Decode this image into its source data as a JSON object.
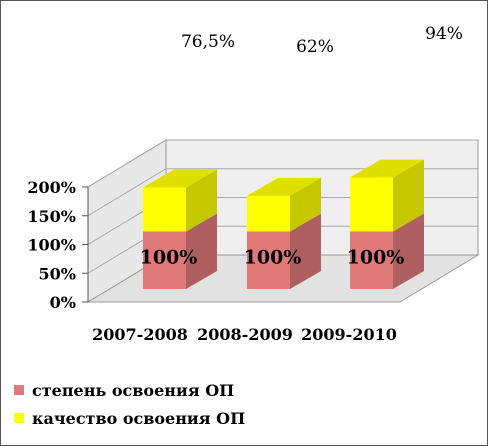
{
  "chart_data": {
    "type": "bar",
    "stacked": true,
    "three_d": true,
    "categories": [
      "2007-2008",
      "2008-2009",
      "2009-2010"
    ],
    "series": [
      {
        "name": "степень освоения ОП",
        "values": [
          100,
          100,
          100
        ],
        "labels": [
          "100%",
          "100%",
          "100%"
        ],
        "color": "#E07A7A"
      },
      {
        "name": "качество освоения ОП",
        "values": [
          76.5,
          62,
          94
        ],
        "labels": [
          "76,5%",
          "62%",
          "94%"
        ],
        "color": "#FFFF00"
      }
    ],
    "y_ticks": [
      "0%",
      "50%",
      "100%",
      "150%",
      "200%"
    ],
    "ylim": [
      0,
      200
    ],
    "grid": true,
    "legend_position": "bottom-left",
    "title": "",
    "xlabel": "",
    "ylabel": ""
  }
}
